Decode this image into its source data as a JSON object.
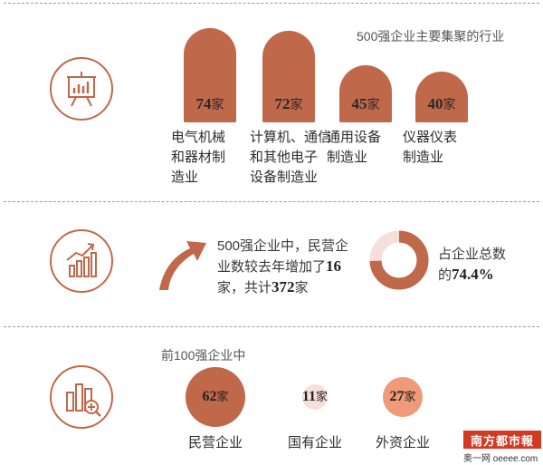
{
  "colors": {
    "accent": "#c0684a",
    "light": "#f6dfd8",
    "medium": "#ef9a78",
    "logo": "#d23a22"
  },
  "icons": [
    "presentation-chart-icon",
    "growth-chart-icon",
    "bar-magnify-icon",
    "curved-arrow-icon"
  ],
  "chart_data": [
    {
      "type": "bar",
      "title": "500强企业主要集聚的行业",
      "categories": [
        "电气机械和器材制造业",
        "计算机、通信和其他电子设备制造业",
        "通用设备制造业",
        "仪器仪表制造业"
      ],
      "category_lines": [
        [
          "电气机械",
          "和器材制",
          "造业"
        ],
        [
          "计算机、通信",
          "和其他电子",
          "设备制造业"
        ],
        [
          "通用设备",
          "制造业"
        ],
        [
          "仪器仪表",
          "制造业"
        ]
      ],
      "values": [
        74,
        72,
        45,
        40
      ],
      "unit": "家",
      "ylim": [
        0,
        74
      ]
    },
    {
      "type": "pie",
      "caption": [
        "占企业总数",
        "的"
      ],
      "value": 74.4,
      "value_label": "74.4%"
    },
    {
      "type": "scatter",
      "title": "前100强企业中",
      "categories": [
        "民营企业",
        "国有企业",
        "外资企业"
      ],
      "values": [
        62,
        11,
        27
      ],
      "unit": "家"
    }
  ],
  "stat": {
    "line1": "500强企业中，民营企",
    "line2_prefix": "业数较去年增加了",
    "increase": "16",
    "line3_prefix": "家，共计",
    "total": "372",
    "line3_suffix": "家"
  },
  "logo": {
    "name": "南方都市報",
    "sub": "奥一网 oeeee.com"
  }
}
